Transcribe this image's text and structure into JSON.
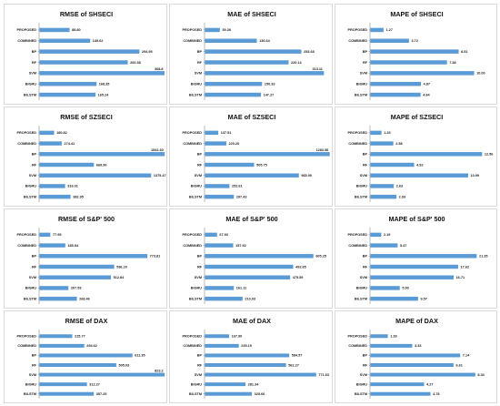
{
  "bar_color": "#5b9bd5",
  "axis_color": "#8c8c8c",
  "chart_data": [
    {
      "type": "bar",
      "orientation": "horizontal",
      "title": "RMSE of SHSECI",
      "categories": [
        "PROPOSED",
        "COMBINED",
        "BP",
        "RF",
        "SVM",
        "BIGRU",
        "BILSTM"
      ],
      "values": [
        88.8,
        149.62,
        294.95,
        260.38,
        368.8,
        168.35,
        165.24
      ],
      "labels": [
        "88.80",
        "149.62",
        "294.95",
        "260.38",
        "368.8",
        "168.35",
        "165.24"
      ],
      "xlim": [
        0,
        370
      ]
    },
    {
      "type": "bar",
      "orientation": "horizontal",
      "title": "MAE of SHSECI",
      "categories": [
        "PROPOSED",
        "COMBINED",
        "BP",
        "RF",
        "SVM",
        "BIGRU",
        "BILSTM"
      ],
      "values": [
        39.28,
        136.64,
        253.68,
        220.14,
        313.11,
        150.33,
        147.27
      ],
      "labels": [
        "39.28",
        "136.64",
        "253.68",
        "220.14",
        "313.11",
        "150.33",
        "147.27"
      ],
      "xlim": [
        0,
        330
      ]
    },
    {
      "type": "bar",
      "orientation": "horizontal",
      "title": "MAPE of SHSECI",
      "categories": [
        "PROPOSED",
        "COMBINED",
        "BP",
        "RF",
        "SVM",
        "BIGRU",
        "BILSTM"
      ],
      "values": [
        1.27,
        3.72,
        8.51,
        7.38,
        10.0,
        4.87,
        4.84
      ],
      "labels": [
        "1.27",
        "3.72",
        "8.51",
        "7.38",
        "10.00",
        "4.87",
        "4.84"
      ],
      "xlim": [
        0,
        12
      ]
    },
    {
      "type": "bar",
      "orientation": "horizontal",
      "title": "RMSE of SZSECI",
      "categories": [
        "PROPOSED",
        "COMBINED",
        "BP",
        "RF",
        "SVM",
        "BIGRU",
        "BILSTM"
      ],
      "values": [
        180.82,
        274.41,
        1542.3,
        669.9,
        1375.47,
        316.01,
        382.95
      ],
      "labels": [
        "180.82",
        "274.41",
        "1542.30",
        "669.90",
        "1375.47",
        "316.01",
        "382.95"
      ],
      "xlim": [
        0,
        1545
      ]
    },
    {
      "type": "bar",
      "orientation": "horizontal",
      "title": "MAE of SZSECI",
      "categories": [
        "PROPOSED",
        "COMBINED",
        "BP",
        "RF",
        "SVM",
        "BIGRU",
        "BILSTM"
      ],
      "values": [
        137.51,
        220.2,
        1283.56,
        505.75,
        965.9,
        252.61,
        297.43
      ],
      "labels": [
        "137.51",
        "220.20",
        "1283.56",
        "505.75",
        "965.90",
        "252.61",
        "297.43"
      ],
      "xlim": [
        0,
        1290
      ]
    },
    {
      "type": "bar",
      "orientation": "horizontal",
      "title": "MAPE of SZSECI",
      "categories": [
        "PROPOSED",
        "COMBINED",
        "BP",
        "RF",
        "SVM",
        "BIGRU",
        "BILSTM"
      ],
      "values": [
        1.25,
        2.58,
        12.56,
        4.92,
        10.99,
        2.63,
        2.93
      ],
      "labels": [
        "1.25",
        "2.58",
        "12.56",
        "4.92",
        "10.99",
        "2.63",
        "2.93"
      ],
      "xlim": [
        0,
        14
      ]
    },
    {
      "type": "bar",
      "orientation": "horizontal",
      "title": "RMSE of S&P' 500",
      "categories": [
        "PROPOSED",
        "COMBINED",
        "BP",
        "RF",
        "SVM",
        "BIGRU",
        "BILSTM"
      ],
      "values": [
        77.95,
        185.54,
        773.81,
        536.2,
        512.84,
        207.53,
        268.46
      ],
      "labels": [
        "77.95",
        "185.54",
        "773.81",
        "536.20",
        "512.84",
        "207.53",
        "268.46"
      ],
      "xlim": [
        0,
        900
      ]
    },
    {
      "type": "bar",
      "orientation": "horizontal",
      "title": "MAE of S&P' 500",
      "categories": [
        "PROPOSED",
        "COMBINED",
        "BP",
        "RF",
        "SVM",
        "BIGRU",
        "BILSTM"
      ],
      "values": [
        67.93,
        157.92,
        605.25,
        492.65,
        475.59,
        161.11,
        210.03
      ],
      "labels": [
        "67.93",
        "157.92",
        "605.25",
        "492.65",
        "475.59",
        "161.11",
        "210.03"
      ],
      "xlim": [
        0,
        700
      ]
    },
    {
      "type": "bar",
      "orientation": "horizontal",
      "title": "MAPE of S&P' 500",
      "categories": [
        "PROPOSED",
        "COMBINED",
        "BP",
        "RF",
        "SVM",
        "BIGRU",
        "BILSTM"
      ],
      "values": [
        2.19,
        5.47,
        21.35,
        17.62,
        16.71,
        5.9,
        9.57
      ],
      "labels": [
        "2.19",
        "5.47",
        "21.35",
        "17.62",
        "16.71",
        "5.90",
        "9.57"
      ],
      "xlim": [
        0,
        25
      ]
    },
    {
      "type": "bar",
      "orientation": "horizontal",
      "title": "RMSE of DAX",
      "categories": [
        "PROPOSED",
        "COMBINED",
        "BP",
        "RF",
        "SVM",
        "BIGRU",
        "BILSTM"
      ],
      "values": [
        215.77,
        294.62,
        611.35,
        505.03,
        823.2,
        312.27,
        357.25
      ],
      "labels": [
        "215.77",
        "294.62",
        "611.35",
        "505.03",
        "823.2",
        "312.27",
        "357.25"
      ],
      "xlim": [
        0,
        825
      ]
    },
    {
      "type": "bar",
      "orientation": "horizontal",
      "title": "MAE of DAX",
      "categories": [
        "PROPOSED",
        "COMBINED",
        "BP",
        "RF",
        "SVM",
        "BIGRU",
        "BILSTM"
      ],
      "values": [
        167.9,
        235.19,
        584.57,
        562.27,
        771.63,
        281.34,
        325.66
      ],
      "labels": [
        "167.90",
        "235.19",
        "584.57",
        "562.27",
        "771.63",
        "281.34",
        "325.66"
      ],
      "xlim": [
        0,
        870
      ]
    },
    {
      "type": "bar",
      "orientation": "horizontal",
      "title": "MAPE of DAX",
      "categories": [
        "PROPOSED",
        "COMBINED",
        "BP",
        "RF",
        "SVM",
        "BIGRU",
        "BILSTM"
      ],
      "values": [
        1.39,
        3.33,
        7.14,
        6.61,
        8.34,
        4.27,
        4.78
      ],
      "labels": [
        "1.39",
        "3.33",
        "7.14",
        "6.61",
        "8.34",
        "4.27",
        "4.78"
      ],
      "xlim": [
        0,
        9.9
      ]
    }
  ]
}
